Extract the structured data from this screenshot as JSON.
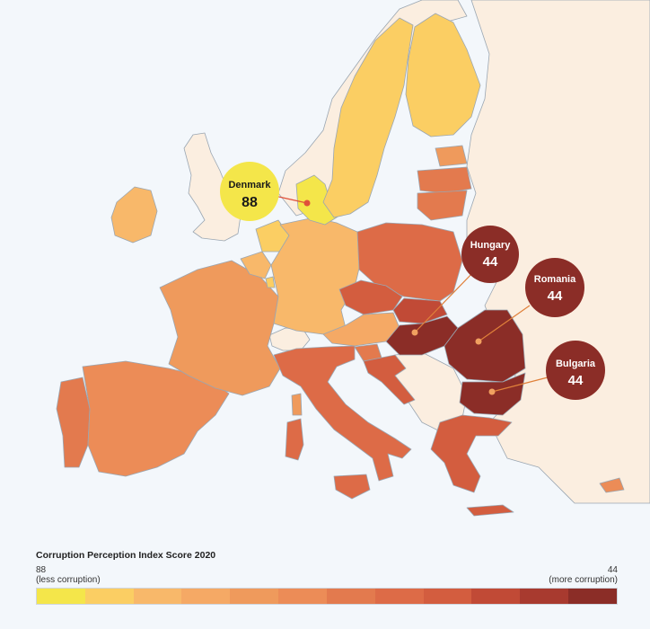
{
  "colors": {
    "sea": "#f3f7fb",
    "non_eu": "#fbeee0",
    "border": "#9aa6b2",
    "scale": [
      "#f4e64a",
      "#fbce63",
      "#f8b86a",
      "#f5a965",
      "#ef9a5c",
      "#ec8c57",
      "#e37a4e",
      "#dd6b47",
      "#d35d3f",
      "#c14a36",
      "#a83a2f",
      "#8b2d27"
    ]
  },
  "callouts": [
    {
      "country": "Denmark",
      "score": "88",
      "fill": "#f4e64a",
      "text_color": "#1a1a1a"
    },
    {
      "country": "Hungary",
      "score": "44",
      "fill": "#8b2d27",
      "text_color": "#ffffff"
    },
    {
      "country": "Romania",
      "score": "44",
      "fill": "#8b2d27",
      "text_color": "#ffffff"
    },
    {
      "country": "Bulgaria",
      "score": "44",
      "fill": "#8b2d27",
      "text_color": "#ffffff"
    }
  ],
  "legend": {
    "title": "Corruption Perception Index Score 2020",
    "left_value": "88",
    "left_label": "(less corruption)",
    "right_value": "44",
    "right_label": "(more corruption)"
  }
}
